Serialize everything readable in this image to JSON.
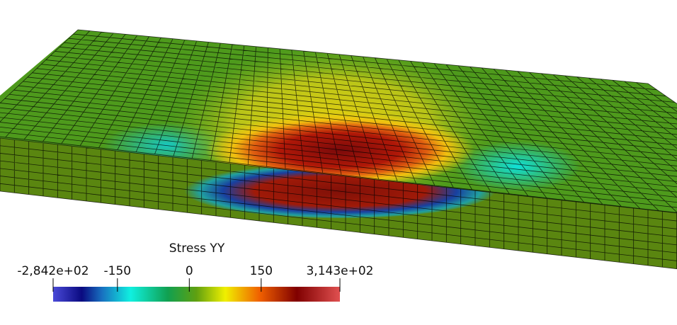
{
  "colorbar": {
    "title": "Stress YY",
    "range": [
      -284.2,
      314.3
    ],
    "ticks": [
      {
        "value": -284.2,
        "label": "-2,842e+02"
      },
      -150,
      0,
      150,
      {
        "value": 314.3,
        "label": "3,143e+02"
      }
    ]
  }
}
